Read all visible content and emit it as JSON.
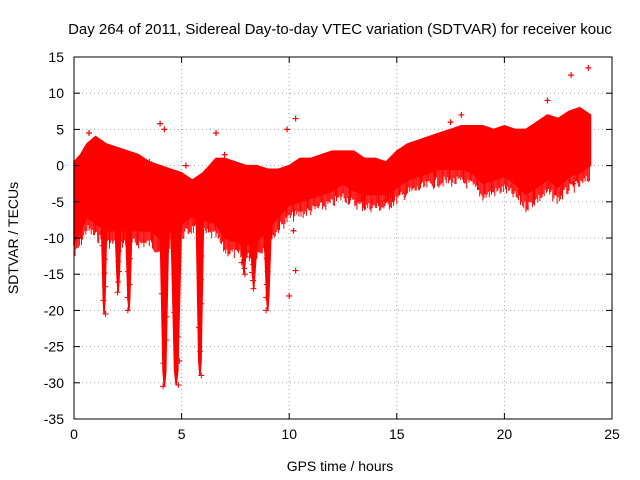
{
  "chart_data": {
    "type": "scatter",
    "title": "Day 264 of 2011, Sidereal Day-to-day VTEC variation (SDTVAR) for receiver kouc",
    "xlabel": "GPS time / hours",
    "ylabel": "SDTVAR / TECUs",
    "xlim": [
      0,
      25
    ],
    "ylim": [
      -35,
      15
    ],
    "xticks": [
      0,
      5,
      10,
      15,
      20,
      25
    ],
    "xtick_labels": [
      "0",
      "5",
      "10",
      "15",
      "20",
      "25"
    ],
    "yticks": [
      15,
      10,
      5,
      0,
      -5,
      -10,
      -15,
      -20,
      -25,
      -30,
      -35
    ],
    "ytick_labels": [
      "15",
      "10",
      "5",
      "0",
      "-5",
      "-10",
      "-15",
      "-20",
      "-25",
      "-30",
      "-35"
    ],
    "grid": true,
    "marker": "+",
    "color": "#ff0000",
    "band": {
      "x": [
        0.0,
        0.3,
        0.6,
        1.0,
        1.5,
        2.0,
        2.5,
        3.0,
        3.5,
        4.0,
        4.5,
        5.0,
        5.5,
        6.0,
        6.6,
        7.0,
        7.5,
        8.0,
        8.5,
        9.0,
        9.5,
        10.0,
        10.5,
        11.0,
        11.5,
        12.0,
        12.5,
        13.0,
        13.5,
        14.0,
        14.5,
        15.0,
        15.5,
        16.0,
        16.5,
        17.0,
        17.5,
        18.0,
        18.5,
        19.0,
        19.5,
        20.0,
        20.5,
        21.0,
        21.5,
        22.0,
        22.5,
        23.0,
        23.5,
        24.0
      ],
      "upper": [
        0.5,
        1.5,
        3.0,
        4.0,
        3.0,
        2.5,
        2.0,
        1.5,
        0.5,
        0.0,
        -0.5,
        -1.0,
        -2.0,
        -1.0,
        1.0,
        1.0,
        0.5,
        0.0,
        0.0,
        -0.5,
        -0.5,
        0.0,
        1.0,
        1.0,
        1.5,
        2.0,
        2.0,
        2.0,
        1.0,
        1.0,
        0.5,
        2.0,
        3.0,
        3.5,
        4.0,
        4.5,
        5.0,
        5.5,
        5.5,
        5.5,
        5.0,
        5.5,
        5.0,
        5.0,
        6.0,
        7.0,
        6.5,
        7.5,
        8.0,
        7.0
      ],
      "lower": [
        -11.0,
        -9.0,
        -7.0,
        -8.0,
        -9.0,
        -9.0,
        -9.0,
        -9.0,
        -9.0,
        -10.0,
        -9.0,
        -8.0,
        -7.0,
        -7.5,
        -8.0,
        -10.0,
        -10.5,
        -11.0,
        -10.5,
        -9.0,
        -7.0,
        -5.5,
        -5.0,
        -4.5,
        -4.0,
        -3.5,
        -2.5,
        -3.5,
        -4.0,
        -4.0,
        -4.0,
        -3.0,
        -2.0,
        -1.5,
        -1.0,
        -0.5,
        -0.5,
        -0.5,
        -1.0,
        -2.5,
        -2.0,
        -1.5,
        -2.5,
        -4.0,
        -3.0,
        -2.0,
        -3.0,
        -1.5,
        -1.0,
        0.0
      ]
    },
    "dips": [
      {
        "x": 1.4,
        "width": 0.25,
        "bottom": -20.5
      },
      {
        "x": 2.05,
        "width": 0.3,
        "bottom": -17.5
      },
      {
        "x": 2.55,
        "width": 0.3,
        "bottom": -20.0
      },
      {
        "x": 4.2,
        "width": 0.4,
        "bottom": -30.5
      },
      {
        "x": 4.75,
        "width": 0.5,
        "bottom": -30.3
      },
      {
        "x": 5.85,
        "width": 0.35,
        "bottom": -29.0
      },
      {
        "x": 7.9,
        "width": 0.4,
        "bottom": -15.0
      },
      {
        "x": 8.35,
        "width": 0.35,
        "bottom": -17.0
      },
      {
        "x": 9.0,
        "width": 0.35,
        "bottom": -20.0
      },
      {
        "x": 13.5,
        "width": 0.5,
        "bottom": -4.8
      },
      {
        "x": 14.6,
        "width": 0.5,
        "bottom": -4.8
      }
    ],
    "outliers": [
      {
        "x": 0.7,
        "y": 4.5
      },
      {
        "x": 3.5,
        "y": 0.5
      },
      {
        "x": 4.0,
        "y": 5.8
      },
      {
        "x": 4.2,
        "y": 5.0
      },
      {
        "x": 5.2,
        "y": 0.0
      },
      {
        "x": 6.6,
        "y": 4.5
      },
      {
        "x": 7.0,
        "y": 1.5
      },
      {
        "x": 9.9,
        "y": 5.0
      },
      {
        "x": 10.3,
        "y": 6.5
      },
      {
        "x": 10.0,
        "y": -18.0
      },
      {
        "x": 10.3,
        "y": -14.5
      },
      {
        "x": 10.2,
        "y": -9.0
      },
      {
        "x": 17.5,
        "y": 6.0
      },
      {
        "x": 18.0,
        "y": 7.0
      },
      {
        "x": 22.0,
        "y": 9.0
      },
      {
        "x": 23.1,
        "y": 12.5
      },
      {
        "x": 23.9,
        "y": 13.5
      },
      {
        "x": 23.2,
        "y": -2.5
      }
    ],
    "legend": "none"
  }
}
